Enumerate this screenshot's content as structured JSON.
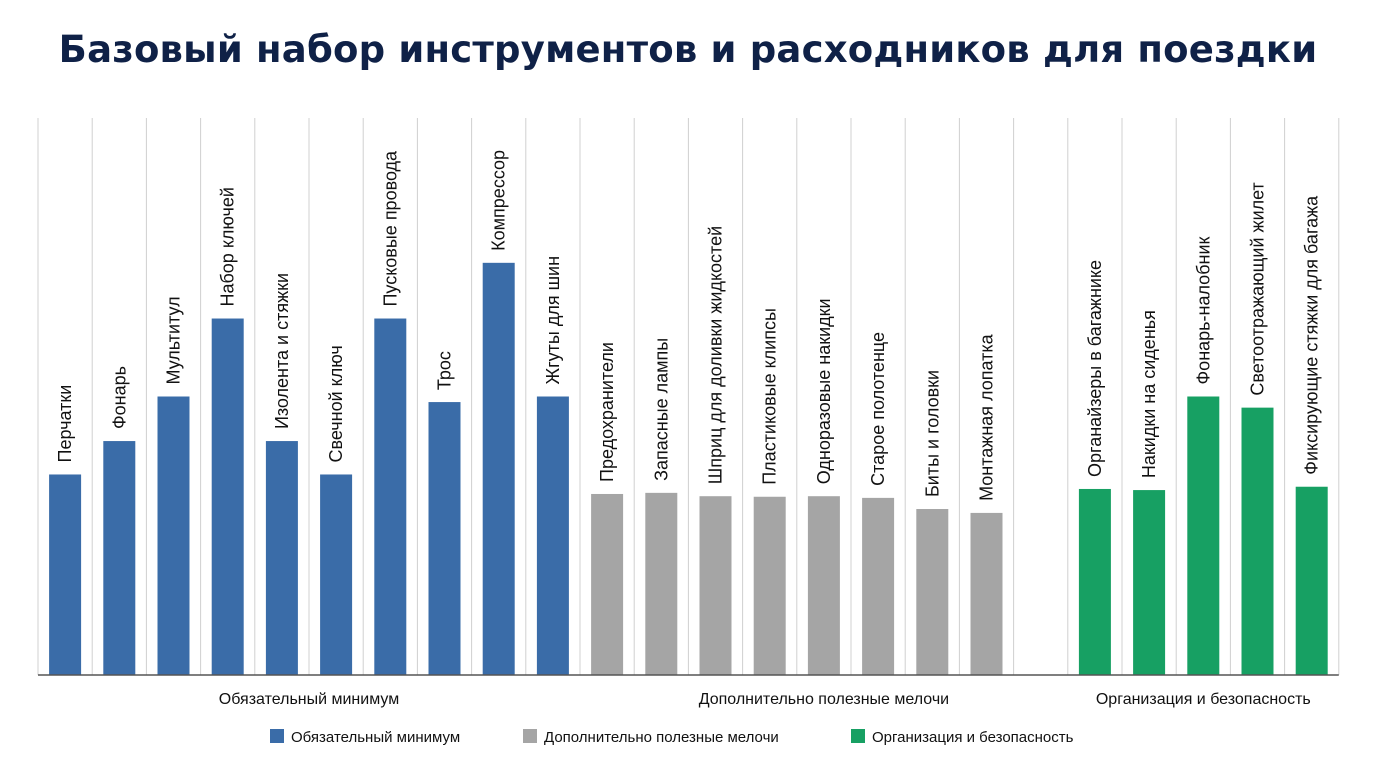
{
  "chart_data": {
    "type": "bar",
    "title": "Базовый набор инструментов и расходников для поездки",
    "xlabel": "",
    "ylabel": "",
    "grid": "vertical",
    "legend_placement": "bottom",
    "groups": [
      {
        "name": "Обязательный минимум",
        "color": "#3a6ca8",
        "categories": [
          "Перчатки",
          "Фонарь",
          "Мультитул",
          "Набор ключей",
          "Изолента и стяжки",
          "Свечной ключ",
          "Пусковые провода",
          "Трос",
          "Компрессор",
          "Жгуты для шин"
        ],
        "values": [
          36,
          42,
          50,
          64,
          42,
          36,
          64,
          49,
          74,
          50
        ]
      },
      {
        "name": "Дополнительно полезные мелочи",
        "color": "#a5a5a5",
        "categories": [
          "Предохранители",
          "Запасные лампы",
          "Шприц для доливки жидкостей",
          "Пластиковые клипсы",
          "Одноразовые накидки",
          "Старое полотенце",
          "Биты и головки",
          "Монтажная лопатка"
        ],
        "values": [
          32.5,
          32.7,
          32.1,
          32,
          32.1,
          31.8,
          29.8,
          29.1
        ]
      },
      {
        "name": "Организация и безопасность",
        "color": "#17a063",
        "categories": [
          "Органайзеры в багажнике",
          "Накидки на сиденья",
          "Фонарь-налобник",
          "Светоотражающий жилет",
          "Фиксирующие стяжки для багажа"
        ],
        "values": [
          33.4,
          33.2,
          50,
          48,
          33.8
        ]
      }
    ]
  }
}
